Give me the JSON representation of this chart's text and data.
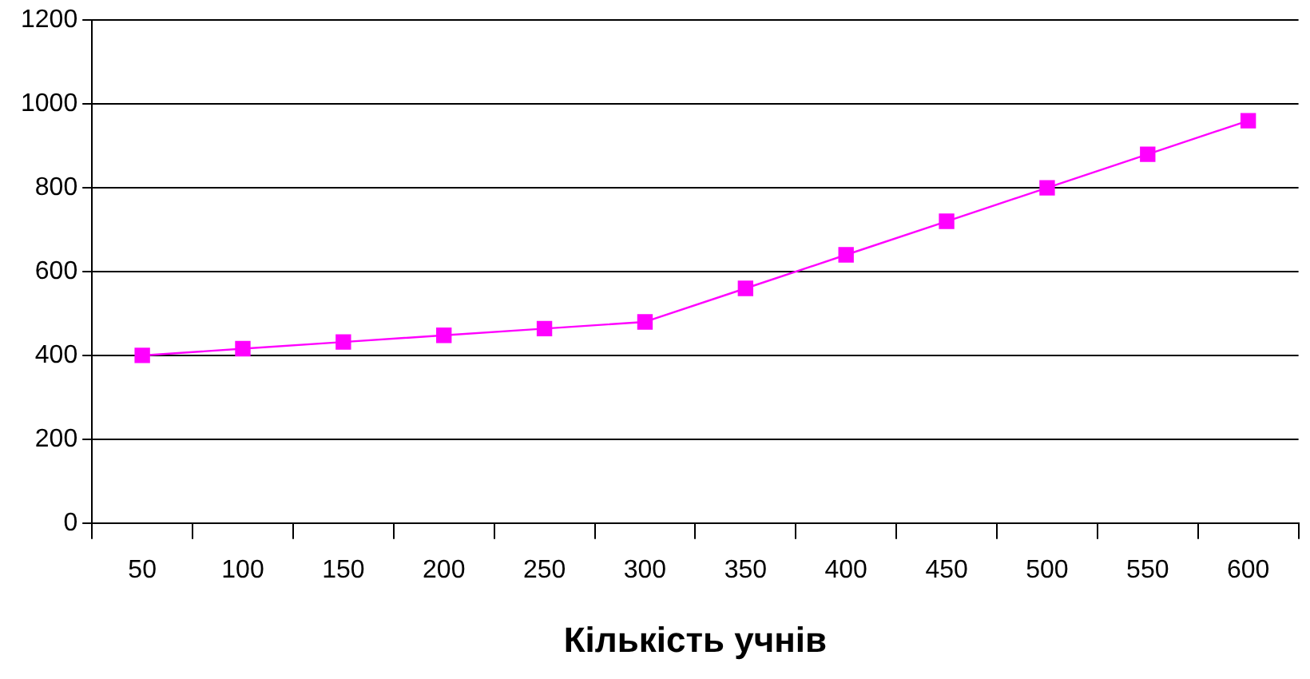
{
  "chart_data": {
    "type": "line",
    "xlabel": "Кількість учнів",
    "categories": [
      "50",
      "100",
      "150",
      "200",
      "250",
      "300",
      "350",
      "400",
      "450",
      "500",
      "550",
      "600"
    ],
    "series": [
      {
        "color": "#ff00ff",
        "values": [
          400,
          416,
          432,
          448,
          464,
          480,
          560,
          640,
          720,
          800,
          880,
          960
        ]
      }
    ],
    "ylim": [
      0,
      1200
    ],
    "yticks": [
      0,
      200,
      400,
      600,
      800,
      1000,
      1200
    ],
    "grid": "y",
    "legend": false,
    "marker": "square",
    "line_style": "solid"
  }
}
